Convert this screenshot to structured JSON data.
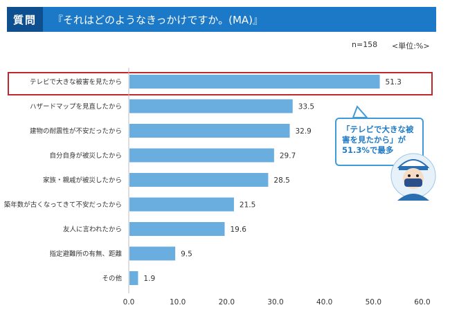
{
  "header": {
    "question_label": "質問",
    "title": "『それはどのようなきっかけですか。(MA)』"
  },
  "meta": {
    "n_text": "n=158",
    "unit_text": "<単位:%>"
  },
  "callout": {
    "text": "「テレビで大きな被害を見たから」が51.3%で最多"
  },
  "colors": {
    "bar": "#6aaee0",
    "highlight_border": "#c0272d",
    "header_bg": "#1b79c7",
    "header_label_bg": "#0e4f8f",
    "callout_text": "#1e7ac6"
  },
  "chart_data": {
    "type": "bar",
    "orientation": "horizontal",
    "categories": [
      "テレビで大きな被害を見たから",
      "ハザードマップを見直したから",
      "建物の耐震性が不安だったから",
      "自分自身が被災したから",
      "家族・親戚が被災したから",
      "築年数が古くなってきて不安だったから",
      "友人に言われたから",
      "指定避難所の有無、距離",
      "その他"
    ],
    "values": [
      51.3,
      33.5,
      32.9,
      29.7,
      28.5,
      21.5,
      19.6,
      9.5,
      1.9
    ],
    "value_labels": [
      "51.3",
      "33.5",
      "32.9",
      "29.7",
      "28.5",
      "21.5",
      "19.6",
      "9.5",
      "1.9"
    ],
    "x_ticks": [
      0,
      10,
      20,
      30,
      40,
      50,
      60
    ],
    "x_tick_labels": [
      "0.0",
      "10.0",
      "20.0",
      "30.0",
      "40.0",
      "50.0",
      "60.0"
    ],
    "xlim": [
      0,
      60
    ],
    "grid": false,
    "highlight_index": 0
  }
}
